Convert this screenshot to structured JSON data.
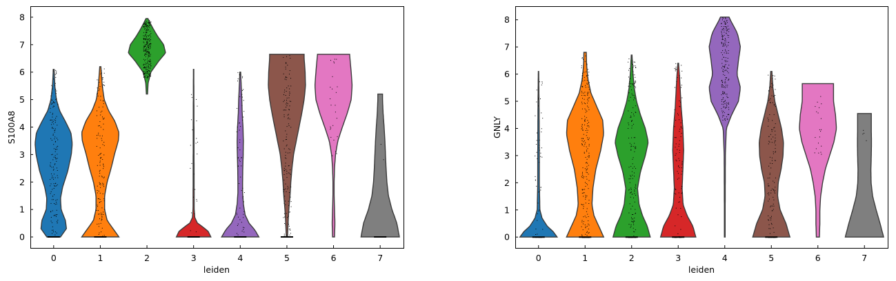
{
  "chart_data": [
    {
      "type": "violin",
      "xlabel": "leiden",
      "ylabel": "S100A8",
      "categories": [
        "0",
        "1",
        "2",
        "3",
        "4",
        "5",
        "6",
        "7"
      ],
      "yticks": [
        "0",
        "1",
        "2",
        "3",
        "4",
        "5",
        "6",
        "7",
        "8"
      ],
      "ylim": [
        -0.4,
        8.4
      ],
      "colors": [
        "#1f77b4",
        "#ff7f0e",
        "#2ca02c",
        "#d62728",
        "#9467bd",
        "#8c564b",
        "#e377c2",
        "#7f7f7f"
      ],
      "violins": [
        {
          "category": "0",
          "range": [
            0,
            6.1
          ],
          "dots": 200,
          "dot_range": [
            0,
            6.1
          ],
          "profile": [
            [
              0,
              0.35
            ],
            [
              0.3,
              0.65
            ],
            [
              0.6,
              0.6
            ],
            [
              1,
              0.38
            ],
            [
              1.4,
              0.35
            ],
            [
              1.8,
              0.45
            ],
            [
              2.4,
              0.72
            ],
            [
              3,
              0.9
            ],
            [
              3.4,
              0.95
            ],
            [
              3.8,
              0.88
            ],
            [
              4.2,
              0.6
            ],
            [
              4.6,
              0.3
            ],
            [
              5,
              0.14
            ],
            [
              5.5,
              0.06
            ],
            [
              6.1,
              0.02
            ]
          ]
        },
        {
          "category": "1",
          "range": [
            0,
            6.2
          ],
          "dots": 170,
          "dot_range": [
            0,
            6.2
          ],
          "profile": [
            [
              0,
              0.95
            ],
            [
              0.3,
              0.65
            ],
            [
              0.6,
              0.35
            ],
            [
              1,
              0.22
            ],
            [
              1.5,
              0.22
            ],
            [
              2,
              0.35
            ],
            [
              2.5,
              0.55
            ],
            [
              3,
              0.72
            ],
            [
              3.5,
              0.92
            ],
            [
              3.8,
              0.95
            ],
            [
              4.2,
              0.75
            ],
            [
              4.6,
              0.42
            ],
            [
              5,
              0.2
            ],
            [
              5.5,
              0.1
            ],
            [
              6.2,
              0.03
            ]
          ]
        },
        {
          "category": "2",
          "range": [
            5.2,
            7.95
          ],
          "dots": 260,
          "dot_range": [
            5.8,
            7.9
          ],
          "profile": [
            [
              5.2,
              0.03
            ],
            [
              5.6,
              0.06
            ],
            [
              6,
              0.2
            ],
            [
              6.4,
              0.6
            ],
            [
              6.7,
              0.95
            ],
            [
              7,
              0.85
            ],
            [
              7.3,
              0.55
            ],
            [
              7.6,
              0.3
            ],
            [
              7.95,
              0.05
            ]
          ]
        },
        {
          "category": "3",
          "range": [
            0,
            6.1
          ],
          "dots": 30,
          "dot_range": [
            0,
            5.5
          ],
          "profile": [
            [
              0,
              0.88
            ],
            [
              0.2,
              0.75
            ],
            [
              0.35,
              0.5
            ],
            [
              0.5,
              0.2
            ],
            [
              0.7,
              0.06
            ],
            [
              1,
              0.03
            ],
            [
              2,
              0.025
            ],
            [
              4,
              0.02
            ],
            [
              6.1,
              0.01
            ]
          ]
        },
        {
          "category": "4",
          "range": [
            0,
            6.0
          ],
          "dots": 80,
          "dot_range": [
            0,
            6.0
          ],
          "profile": [
            [
              0,
              0.95
            ],
            [
              0.25,
              0.75
            ],
            [
              0.5,
              0.45
            ],
            [
              0.8,
              0.25
            ],
            [
              1.2,
              0.16
            ],
            [
              1.6,
              0.12
            ],
            [
              2,
              0.12
            ],
            [
              2.5,
              0.13
            ],
            [
              3,
              0.15
            ],
            [
              3.5,
              0.16
            ],
            [
              4,
              0.14
            ],
            [
              4.5,
              0.1
            ],
            [
              5,
              0.08
            ],
            [
              5.5,
              0.05
            ],
            [
              6,
              0.02
            ]
          ]
        },
        {
          "category": "5",
          "range": [
            0,
            6.65
          ],
          "dots": 170,
          "dot_range": [
            0,
            6.65
          ],
          "profile": [
            [
              0,
              0.03
            ],
            [
              0.5,
              0.06
            ],
            [
              1,
              0.1
            ],
            [
              1.5,
              0.16
            ],
            [
              2,
              0.2
            ],
            [
              2.5,
              0.26
            ],
            [
              3,
              0.34
            ],
            [
              3.5,
              0.48
            ],
            [
              4,
              0.62
            ],
            [
              4.5,
              0.76
            ],
            [
              5,
              0.88
            ],
            [
              5.5,
              0.95
            ],
            [
              6,
              0.93
            ],
            [
              6.5,
              0.88
            ],
            [
              6.65,
              0.88
            ]
          ]
        },
        {
          "category": "6",
          "range": [
            0,
            6.65
          ],
          "dots": 25,
          "dot_range": [
            2.5,
            6.6
          ],
          "profile": [
            [
              0,
              0.05
            ],
            [
              0.5,
              0.07
            ],
            [
              1,
              0.05
            ],
            [
              1.5,
              0.03
            ],
            [
              2,
              0.03
            ],
            [
              2.5,
              0.05
            ],
            [
              3,
              0.1
            ],
            [
              3.5,
              0.22
            ],
            [
              4,
              0.45
            ],
            [
              4.5,
              0.7
            ],
            [
              5,
              0.9
            ],
            [
              5.5,
              0.95
            ],
            [
              6,
              0.9
            ],
            [
              6.65,
              0.82
            ]
          ]
        },
        {
          "category": "7",
          "range": [
            0,
            5.2
          ],
          "dots": 3,
          "dot_range": [
            0,
            5.0
          ],
          "profile": [
            [
              0,
              0.98
            ],
            [
              0.5,
              0.85
            ],
            [
              1,
              0.6
            ],
            [
              1.5,
              0.42
            ],
            [
              2,
              0.34
            ],
            [
              2.5,
              0.3
            ],
            [
              3,
              0.27
            ],
            [
              3.5,
              0.24
            ],
            [
              4,
              0.2
            ],
            [
              4.5,
              0.15
            ],
            [
              5,
              0.12
            ],
            [
              5.2,
              0.12
            ]
          ]
        }
      ]
    },
    {
      "type": "violin",
      "xlabel": "leiden",
      "ylabel": "GNLY",
      "categories": [
        "0",
        "1",
        "2",
        "3",
        "4",
        "5",
        "6",
        "7"
      ],
      "yticks": [
        "0",
        "1",
        "2",
        "3",
        "4",
        "5",
        "6",
        "7",
        "8"
      ],
      "ylim": [
        -0.4,
        8.5
      ],
      "colors": [
        "#1f77b4",
        "#ff7f0e",
        "#2ca02c",
        "#d62728",
        "#9467bd",
        "#8c564b",
        "#e377c2",
        "#7f7f7f"
      ],
      "violins": [
        {
          "category": "0",
          "range": [
            0,
            6.1
          ],
          "dots": 60,
          "dot_range": [
            0,
            6.1
          ],
          "profile": [
            [
              0,
              0.95
            ],
            [
              0.2,
              0.75
            ],
            [
              0.4,
              0.45
            ],
            [
              0.7,
              0.18
            ],
            [
              1,
              0.07
            ],
            [
              2,
              0.04
            ],
            [
              3,
              0.04
            ],
            [
              4,
              0.035
            ],
            [
              5,
              0.025
            ],
            [
              6.1,
              0.01
            ]
          ]
        },
        {
          "category": "1",
          "range": [
            0,
            6.8
          ],
          "dots": 260,
          "dot_range": [
            0,
            6.7
          ],
          "profile": [
            [
              0,
              0.95
            ],
            [
              0.4,
              0.7
            ],
            [
              0.8,
              0.45
            ],
            [
              1.2,
              0.35
            ],
            [
              1.8,
              0.4
            ],
            [
              2.5,
              0.55
            ],
            [
              3.2,
              0.8
            ],
            [
              3.8,
              0.95
            ],
            [
              4.3,
              0.9
            ],
            [
              4.8,
              0.6
            ],
            [
              5.3,
              0.3
            ],
            [
              5.8,
              0.15
            ],
            [
              6.3,
              0.08
            ],
            [
              6.8,
              0.06
            ]
          ]
        },
        {
          "category": "2",
          "range": [
            0,
            6.7
          ],
          "dots": 190,
          "dot_range": [
            0,
            6.6
          ],
          "profile": [
            [
              0,
              0.95
            ],
            [
              0.4,
              0.8
            ],
            [
              0.8,
              0.55
            ],
            [
              1.2,
              0.38
            ],
            [
              1.8,
              0.3
            ],
            [
              2.4,
              0.45
            ],
            [
              3,
              0.7
            ],
            [
              3.5,
              0.85
            ],
            [
              4,
              0.7
            ],
            [
              4.5,
              0.45
            ],
            [
              5,
              0.25
            ],
            [
              5.5,
              0.13
            ],
            [
              6,
              0.07
            ],
            [
              6.7,
              0.02
            ]
          ]
        },
        {
          "category": "3",
          "range": [
            0,
            6.4
          ],
          "dots": 110,
          "dot_range": [
            0,
            6.4
          ],
          "profile": [
            [
              0,
              0.9
            ],
            [
              0.4,
              0.75
            ],
            [
              0.8,
              0.45
            ],
            [
              1.2,
              0.25
            ],
            [
              1.8,
              0.2
            ],
            [
              2.5,
              0.24
            ],
            [
              3.2,
              0.28
            ],
            [
              4,
              0.24
            ],
            [
              4.8,
              0.15
            ],
            [
              5.5,
              0.1
            ],
            [
              6,
              0.06
            ],
            [
              6.4,
              0.02
            ]
          ]
        },
        {
          "category": "4",
          "range": [
            0,
            8.1
          ],
          "dots": 200,
          "dot_range": [
            4.3,
            8.1
          ],
          "profile": [
            [
              0,
              0.02
            ],
            [
              1,
              0.02
            ],
            [
              2,
              0.025
            ],
            [
              3,
              0.03
            ],
            [
              4,
              0.08
            ],
            [
              4.5,
              0.35
            ],
            [
              5,
              0.7
            ],
            [
              5.5,
              0.8
            ],
            [
              6,
              0.62
            ],
            [
              6.5,
              0.7
            ],
            [
              7,
              0.8
            ],
            [
              7.5,
              0.65
            ],
            [
              8,
              0.28
            ],
            [
              8.1,
              0.22
            ]
          ]
        },
        {
          "category": "5",
          "range": [
            0,
            6.1
          ],
          "dots": 150,
          "dot_range": [
            0,
            6.0
          ],
          "profile": [
            [
              0,
              0.95
            ],
            [
              0.5,
              0.75
            ],
            [
              1,
              0.45
            ],
            [
              1.5,
              0.32
            ],
            [
              2,
              0.35
            ],
            [
              2.5,
              0.5
            ],
            [
              3,
              0.6
            ],
            [
              3.5,
              0.62
            ],
            [
              4,
              0.52
            ],
            [
              4.5,
              0.35
            ],
            [
              5,
              0.18
            ],
            [
              5.5,
              0.08
            ],
            [
              6.1,
              0.03
            ]
          ]
        },
        {
          "category": "6",
          "range": [
            0,
            5.65
          ],
          "dots": 20,
          "dot_range": [
            3.0,
            5.2
          ],
          "profile": [
            [
              0,
              0.08
            ],
            [
              0.5,
              0.1
            ],
            [
              1,
              0.1
            ],
            [
              1.5,
              0.14
            ],
            [
              2,
              0.24
            ],
            [
              2.5,
              0.38
            ],
            [
              3,
              0.6
            ],
            [
              3.5,
              0.82
            ],
            [
              4,
              0.95
            ],
            [
              4.5,
              0.9
            ],
            [
              5,
              0.8
            ],
            [
              5.65,
              0.8
            ]
          ]
        },
        {
          "category": "7",
          "range": [
            0,
            4.55
          ],
          "dots": 4,
          "dot_range": [
            3.4,
            4.2
          ],
          "profile": [
            [
              0,
              0.98
            ],
            [
              0.5,
              0.8
            ],
            [
              1,
              0.6
            ],
            [
              1.5,
              0.42
            ],
            [
              2,
              0.34
            ],
            [
              2.5,
              0.33
            ],
            [
              3,
              0.35
            ],
            [
              3.5,
              0.36
            ],
            [
              4,
              0.35
            ],
            [
              4.55,
              0.35
            ]
          ]
        }
      ]
    }
  ]
}
